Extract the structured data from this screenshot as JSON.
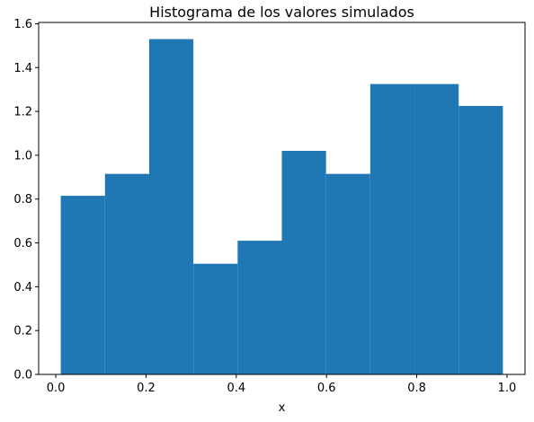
{
  "chart_data": {
    "type": "bar",
    "title": "Histograma de los valores simulados",
    "xlabel": "x",
    "ylabel": "",
    "bin_edges": [
      0.011,
      0.109,
      0.207,
      0.305,
      0.403,
      0.501,
      0.599,
      0.697,
      0.795,
      0.893,
      0.991
    ],
    "values": [
      0.815,
      0.915,
      1.53,
      0.505,
      0.61,
      1.02,
      0.915,
      1.325,
      1.325,
      1.225
    ],
    "xlim": [
      -0.038,
      1.04
    ],
    "ylim": [
      0,
      1.606
    ],
    "xticks": [
      0.0,
      0.2,
      0.4,
      0.6,
      0.8,
      1.0
    ],
    "xtick_labels": [
      "0.0",
      "0.2",
      "0.4",
      "0.6",
      "0.8",
      "1.0"
    ],
    "yticks": [
      0.0,
      0.2,
      0.4,
      0.6,
      0.8,
      1.0,
      1.2,
      1.4,
      1.6
    ],
    "ytick_labels": [
      "0.0",
      "0.2",
      "0.4",
      "0.6",
      "0.8",
      "1.0",
      "1.2",
      "1.4",
      "1.6"
    ],
    "bar_color": "#1f77b4",
    "grid": false,
    "legend": "none"
  }
}
